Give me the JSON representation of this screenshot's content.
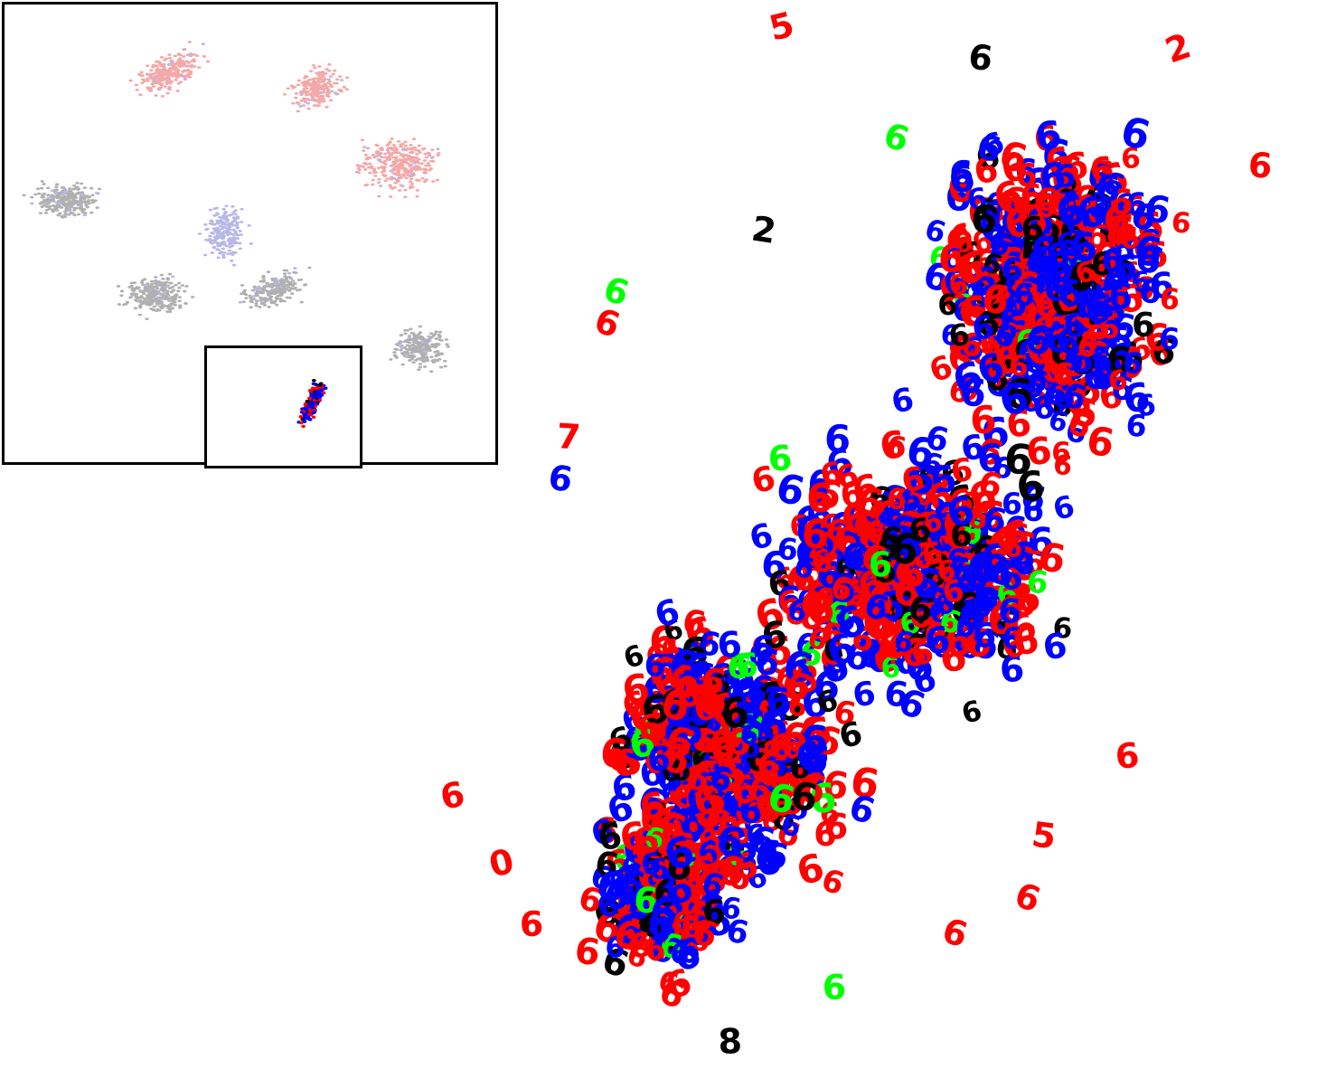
{
  "chart_data": {
    "type": "scatter",
    "title": "",
    "xlabel": "",
    "ylabel": "",
    "grid": false,
    "legend": "none",
    "marker_glyph": "6",
    "stray_glyphs": [
      "5",
      "7",
      "8",
      "2",
      "0"
    ],
    "series": [
      {
        "color": "#ff0000",
        "share": 0.45
      },
      {
        "color": "#0000ff",
        "share": 0.42
      },
      {
        "color": "#000000",
        "share": 0.11
      },
      {
        "color": "#00ff00",
        "share": 0.02
      }
    ],
    "inset": {
      "type": "scatter",
      "description_clusters": 8,
      "cluster_colors": [
        "#f4a8a8",
        "#b0b0b0",
        "#b8b8e8"
      ],
      "highlight_region": "bottom-center"
    }
  }
}
